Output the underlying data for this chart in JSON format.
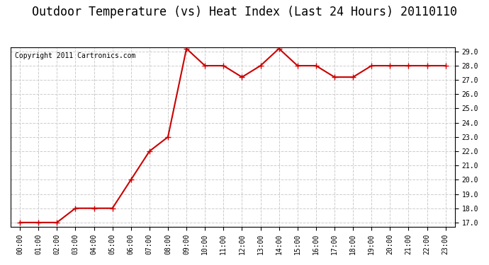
{
  "title": "Outdoor Temperature (vs) Heat Index (Last 24 Hours) 20110110",
  "copyright": "Copyright 2011 Cartronics.com",
  "x_labels": [
    "00:00",
    "01:00",
    "02:00",
    "03:00",
    "04:00",
    "05:00",
    "06:00",
    "07:00",
    "08:00",
    "09:00",
    "10:00",
    "11:00",
    "12:00",
    "13:00",
    "14:00",
    "15:00",
    "16:00",
    "17:00",
    "18:00",
    "19:00",
    "20:00",
    "21:00",
    "22:00",
    "23:00"
  ],
  "y_values": [
    17.0,
    17.0,
    17.0,
    18.0,
    18.0,
    18.0,
    20.0,
    22.0,
    23.0,
    29.2,
    28.0,
    28.0,
    27.2,
    28.0,
    29.2,
    28.0,
    28.0,
    27.2,
    27.2,
    28.0,
    28.0,
    28.0,
    28.0,
    28.0
  ],
  "ylim_min": 17.0,
  "ylim_max": 29.0,
  "ytick_min": 17.0,
  "ytick_max": 29.0,
  "ytick_step": 1.0,
  "line_color": "#cc0000",
  "marker": "+",
  "marker_size": 6,
  "marker_color": "#cc0000",
  "bg_color": "#ffffff",
  "plot_bg_color": "#ffffff",
  "grid_color": "#cccccc",
  "grid_style": "--",
  "title_fontsize": 12,
  "copyright_fontsize": 7,
  "tick_fontsize": 7,
  "line_width": 1.5
}
